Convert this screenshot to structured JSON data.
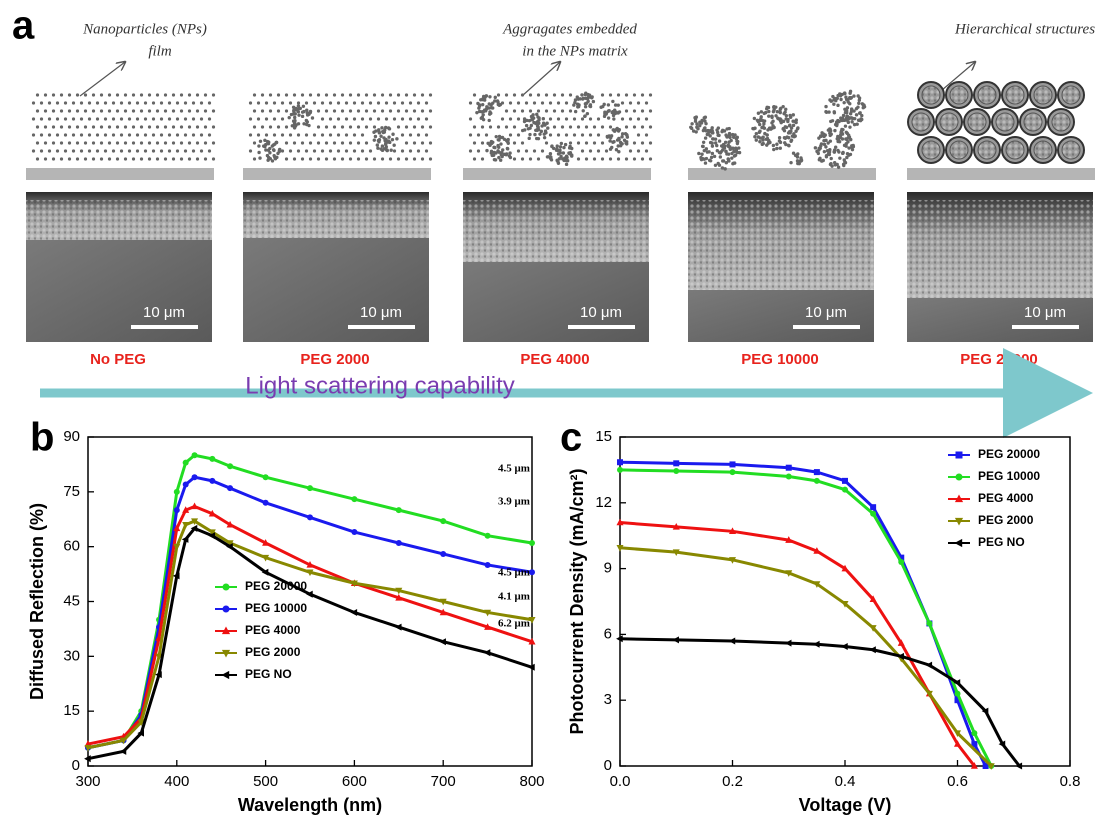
{
  "figure_a": {
    "panel_label": "a",
    "annotations": [
      [
        "Nanoparticles (NPs)",
        "film"
      ],
      [
        "Aggragates embedded",
        "in the NPs matrix"
      ],
      [
        "Hierarchical structures"
      ]
    ],
    "samples": [
      "No PEG",
      "PEG 2000",
      "PEG 4000",
      "PEG 10000",
      "PEG 20000"
    ],
    "scale_bars": [
      "10 μm",
      "10 μm",
      "10 μm",
      "10 μm",
      "10 μm"
    ],
    "arrow_label": "Light scattering capability"
  },
  "chart_data": [
    {
      "type": "line",
      "panel_label": "b",
      "x_label": "Wavelength (nm)",
      "y_label": "Diffused Reflection (%)",
      "xlim": [
        300,
        800
      ],
      "ylim": [
        0,
        90
      ],
      "xticks": [
        300,
        400,
        500,
        600,
        700,
        800
      ],
      "yticks": [
        0,
        15,
        30,
        45,
        60,
        75,
        90
      ],
      "legend": "lower center",
      "x": [
        300,
        340,
        360,
        380,
        400,
        410,
        420,
        440,
        460,
        500,
        550,
        600,
        650,
        700,
        750,
        800
      ],
      "series": [
        {
          "name": "PEG 20000",
          "color": "#22dd22",
          "marker": "circle",
          "values": [
            5,
            7,
            15,
            40,
            75,
            83,
            85,
            84,
            82,
            79,
            76,
            73,
            70,
            67,
            63,
            61
          ]
        },
        {
          "name": "PEG 10000",
          "color": "#1a1aee",
          "marker": "circle",
          "values": [
            5,
            7,
            14,
            38,
            70,
            77,
            79,
            78,
            76,
            72,
            68,
            64,
            61,
            58,
            55,
            53
          ]
        },
        {
          "name": "PEG 4000",
          "color": "#ee1111",
          "marker": "triangle",
          "values": [
            6,
            8,
            13,
            35,
            65,
            70,
            71,
            69,
            66,
            61,
            55,
            50,
            46,
            42,
            38,
            34
          ]
        },
        {
          "name": "PEG 2000",
          "color": "#888800",
          "marker": "down-triangle",
          "values": [
            5,
            7,
            12,
            30,
            60,
            66,
            67,
            64,
            61,
            57,
            53,
            50,
            48,
            45,
            42,
            40
          ]
        },
        {
          "name": "PEG NO",
          "color": "#000000",
          "marker": "left-triangle",
          "values": [
            2,
            4,
            9,
            25,
            52,
            62,
            65,
            63,
            60,
            53,
            47,
            42,
            38,
            34,
            31,
            27
          ]
        }
      ],
      "annotations": [
        "4.5 μm",
        "3.9 μm",
        "4.5 μm",
        "4.1 μm",
        "6.2 μm"
      ]
    },
    {
      "type": "line",
      "panel_label": "c",
      "x_label": "Voltage (V)",
      "y_label": "Photocurrent Density (mA/cm²)",
      "xlim": [
        0,
        0.8
      ],
      "ylim": [
        0,
        15
      ],
      "xticks": [
        {
          "value": 0,
          "label": "0.0"
        },
        0.2,
        0.4,
        0.6,
        0.8
      ],
      "yticks": [
        0,
        3,
        6,
        9,
        12,
        15
      ],
      "legend": "upper right",
      "series": [
        {
          "name": "PEG  20000",
          "color": "#1a1aee",
          "marker": "square",
          "x": [
            0,
            0.1,
            0.2,
            0.3,
            0.35,
            0.4,
            0.45,
            0.5,
            0.55,
            0.6,
            0.63,
            0.65
          ],
          "values": [
            13.85,
            13.8,
            13.75,
            13.6,
            13.4,
            13.0,
            11.8,
            9.5,
            6.5,
            3.0,
            1.0,
            0
          ]
        },
        {
          "name": "PEG  10000",
          "color": "#22dd22",
          "marker": "circle",
          "x": [
            0,
            0.1,
            0.2,
            0.3,
            0.35,
            0.4,
            0.45,
            0.5,
            0.55,
            0.6,
            0.63,
            0.66
          ],
          "values": [
            13.5,
            13.45,
            13.4,
            13.2,
            13.0,
            12.6,
            11.5,
            9.3,
            6.5,
            3.3,
            1.5,
            0
          ]
        },
        {
          "name": "PEG  4000",
          "color": "#ee1111",
          "marker": "triangle",
          "x": [
            0,
            0.1,
            0.2,
            0.3,
            0.35,
            0.4,
            0.45,
            0.5,
            0.55,
            0.6,
            0.63
          ],
          "values": [
            11.1,
            10.9,
            10.7,
            10.3,
            9.8,
            9.0,
            7.6,
            5.6,
            3.3,
            1.0,
            0
          ]
        },
        {
          "name": "PEG  2000",
          "color": "#888800",
          "marker": "down-triangle",
          "x": [
            0,
            0.1,
            0.2,
            0.3,
            0.35,
            0.4,
            0.45,
            0.5,
            0.55,
            0.6,
            0.66
          ],
          "values": [
            9.95,
            9.75,
            9.4,
            8.8,
            8.3,
            7.4,
            6.3,
            4.9,
            3.3,
            1.5,
            0
          ]
        },
        {
          "name": "PEG NO",
          "color": "#000000",
          "marker": "left-triangle",
          "x": [
            0,
            0.1,
            0.2,
            0.3,
            0.35,
            0.4,
            0.45,
            0.5,
            0.55,
            0.6,
            0.65,
            0.68,
            0.71
          ],
          "values": [
            5.8,
            5.75,
            5.7,
            5.6,
            5.55,
            5.45,
            5.3,
            5.0,
            4.6,
            3.8,
            2.5,
            1.0,
            0
          ]
        }
      ]
    }
  ]
}
